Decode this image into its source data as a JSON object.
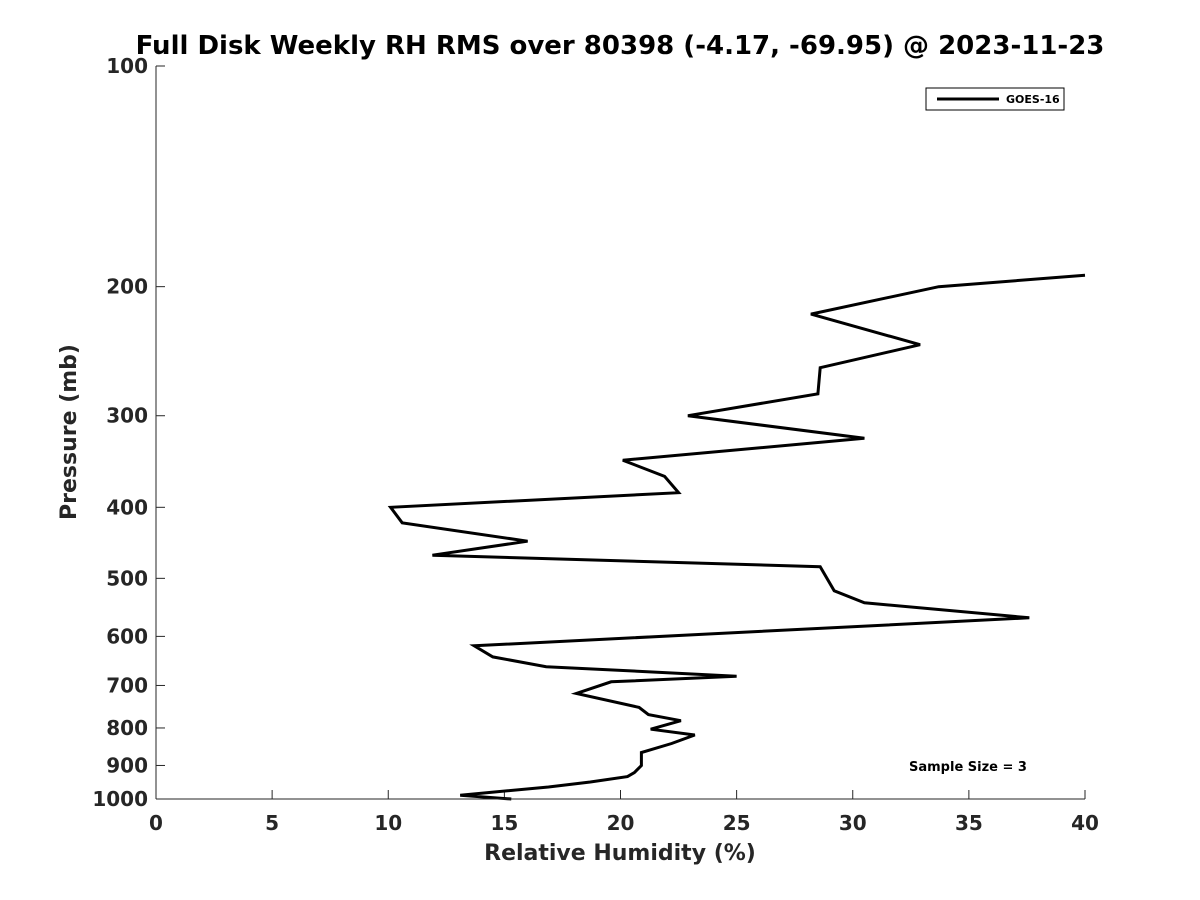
{
  "chart_data": {
    "type": "line",
    "title": "Full Disk Weekly RH RMS over 80398 (-4.17, -69.95) @ 2023-11-23",
    "xlabel": "Relative Humidity (%)",
    "ylabel": "Pressure (mb)",
    "xlim": [
      0,
      40
    ],
    "ylim": [
      100,
      1000
    ],
    "yscale": "log",
    "y_reversed": true,
    "grid": false,
    "x_ticks": [
      0,
      5,
      10,
      15,
      20,
      25,
      30,
      35,
      40
    ],
    "x_tick_labels": [
      "0",
      "5",
      "10",
      "15",
      "20",
      "25",
      "30",
      "35",
      "40"
    ],
    "y_ticks": [
      100,
      200,
      300,
      400,
      500,
      600,
      700,
      800,
      900,
      1000
    ],
    "y_tick_labels": [
      "100",
      "200",
      "300",
      "400",
      "500",
      "600",
      "700",
      "800",
      "900",
      "1000"
    ],
    "legend": {
      "position": "top-right",
      "entries": [
        "GOES-16"
      ]
    },
    "annotation": "Sample Size = 3",
    "series": [
      {
        "name": "GOES-16",
        "color": "#000000",
        "points": [
          {
            "x": 40.0,
            "p": 193
          },
          {
            "x": 33.7,
            "p": 200
          },
          {
            "x": 28.2,
            "p": 218
          },
          {
            "x": 32.9,
            "p": 240
          },
          {
            "x": 28.6,
            "p": 258
          },
          {
            "x": 28.5,
            "p": 280
          },
          {
            "x": 22.9,
            "p": 300
          },
          {
            "x": 30.5,
            "p": 322
          },
          {
            "x": 20.1,
            "p": 345
          },
          {
            "x": 21.9,
            "p": 363
          },
          {
            "x": 22.5,
            "p": 382
          },
          {
            "x": 10.1,
            "p": 400
          },
          {
            "x": 10.6,
            "p": 420
          },
          {
            "x": 16.0,
            "p": 445
          },
          {
            "x": 11.9,
            "p": 465
          },
          {
            "x": 28.6,
            "p": 482
          },
          {
            "x": 29.2,
            "p": 520
          },
          {
            "x": 30.5,
            "p": 540
          },
          {
            "x": 37.6,
            "p": 566
          },
          {
            "x": 13.7,
            "p": 618
          },
          {
            "x": 14.5,
            "p": 640
          },
          {
            "x": 16.8,
            "p": 660
          },
          {
            "x": 25.0,
            "p": 680
          },
          {
            "x": 19.6,
            "p": 692
          },
          {
            "x": 18.1,
            "p": 718
          },
          {
            "x": 20.8,
            "p": 750
          },
          {
            "x": 21.2,
            "p": 767
          },
          {
            "x": 22.6,
            "p": 782
          },
          {
            "x": 21.3,
            "p": 803
          },
          {
            "x": 23.2,
            "p": 818
          },
          {
            "x": 22.2,
            "p": 840
          },
          {
            "x": 20.9,
            "p": 864
          },
          {
            "x": 20.9,
            "p": 900
          },
          {
            "x": 20.6,
            "p": 920
          },
          {
            "x": 20.3,
            "p": 932
          },
          {
            "x": 18.7,
            "p": 948
          },
          {
            "x": 16.9,
            "p": 963
          },
          {
            "x": 13.1,
            "p": 988
          },
          {
            "x": 15.3,
            "p": 1000
          }
        ]
      }
    ]
  }
}
